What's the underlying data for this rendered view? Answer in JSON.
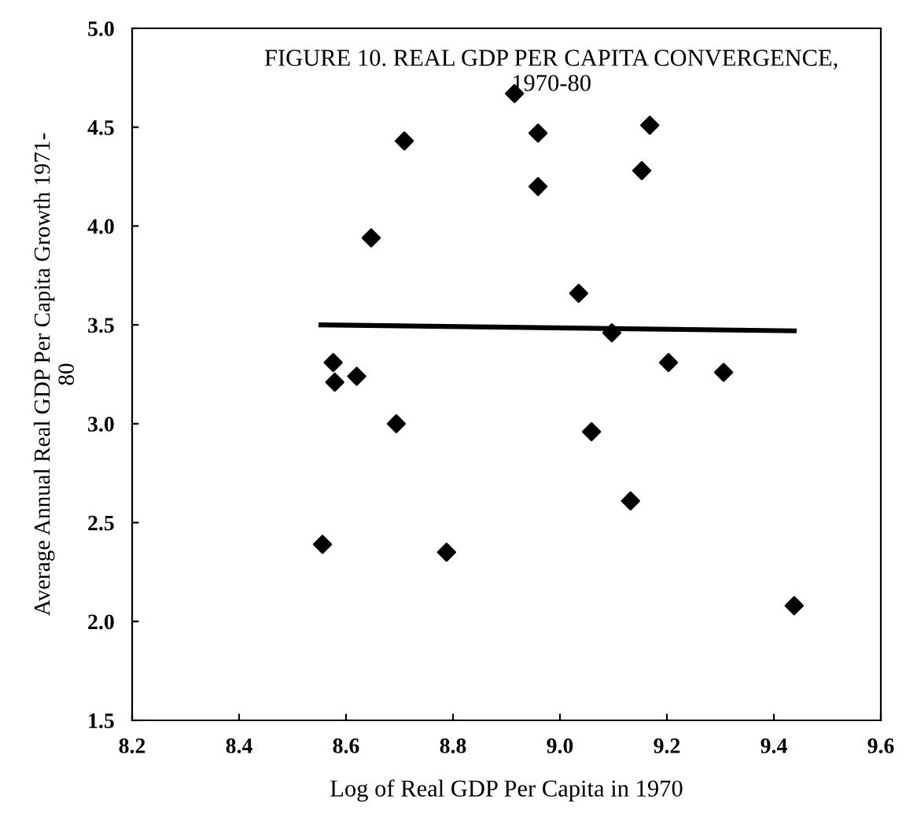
{
  "chart_data": {
    "type": "scatter",
    "title": "FIGURE 10. REAL GDP PER CAPITA CONVERGENCE,\n1970-80",
    "xlabel": "Log of Real GDP Per Capita in 1970",
    "ylabel": "Average Annual Real GDP Per Capita Growth 1971-\n80",
    "series": [
      {
        "color": "#000000",
        "marker": "diamond",
        "x": [
          8.709,
          8.647,
          8.576,
          8.579,
          8.62,
          8.694,
          8.556,
          8.788,
          8.959,
          9.168,
          8.959,
          9.153,
          9.035,
          9.097,
          9.203,
          9.306,
          8.915,
          9.059,
          9.132,
          9.438
        ],
        "values": [
          4.43,
          3.94,
          3.31,
          3.21,
          3.24,
          3.0,
          2.39,
          2.35,
          4.47,
          4.51,
          4.2,
          4.28,
          3.66,
          3.46,
          3.31,
          3.26,
          4.67,
          2.96,
          2.61,
          2.08
        ]
      },
      {
        "type": "line",
        "color": "#000000",
        "x": [
          8.553,
          9.438
        ],
        "values": [
          3.5,
          3.47
        ]
      }
    ],
    "xlim": [
      8.2,
      9.6
    ],
    "xticks": [
      8.2,
      8.4,
      8.6,
      8.8,
      {
        "value": 9,
        "label": "9.0"
      },
      9.2,
      9.4,
      9.6
    ],
    "ylim": [
      1.5,
      5.0
    ],
    "yticks": [
      1.5,
      {
        "value": 2,
        "label": "2.0"
      },
      2.5,
      {
        "value": 3,
        "label": "3.0"
      },
      3.5,
      {
        "value": 4,
        "label": "4.0"
      },
      4.5,
      {
        "value": 5,
        "label": "5.0"
      }
    ],
    "grid": false,
    "legend": false
  }
}
